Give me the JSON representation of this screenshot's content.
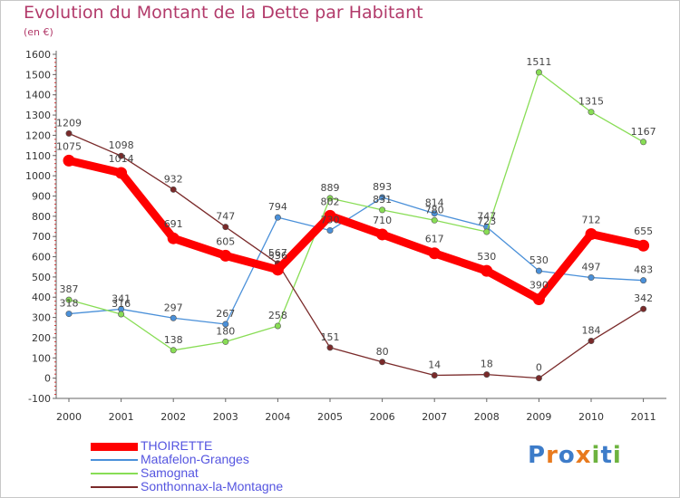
{
  "title": "Evolution du Montant de la Dette par Habitant",
  "subtitle": "(en €)",
  "logo": {
    "text": "Proxiti",
    "colors": [
      "#3d7cc9",
      "#e87a1e",
      "#3d7cc9",
      "#e87a1e",
      "#6db33f",
      "#3d7cc9",
      "#6db33f"
    ]
  },
  "chart_data": {
    "type": "line",
    "x": [
      "2000",
      "2001",
      "2002",
      "2003",
      "2004",
      "2005",
      "2006",
      "2007",
      "2008",
      "2009",
      "2010",
      "2011"
    ],
    "ylim": [
      -100,
      1600
    ],
    "yticks": [
      "-100",
      "0",
      "100",
      "200",
      "300",
      "400",
      "500",
      "600",
      "700",
      "800",
      "900",
      "1000",
      "1100",
      "1200",
      "1300",
      "1400",
      "1500",
      "1600"
    ],
    "grid": false,
    "legend_position": "bottom-left",
    "series": [
      {
        "name": "THOIRETTE",
        "color": "#ff0000",
        "emphasis": true,
        "values": [
          1075,
          1014,
          691,
          605,
          536,
          802,
          710,
          617,
          530,
          390,
          712,
          655
        ],
        "labels": [
          "1075",
          "1014",
          "691",
          "605",
          "536",
          "802",
          "710",
          "617",
          "530",
          "390",
          "712",
          "655"
        ]
      },
      {
        "name": "Matafelon-Granges",
        "color": "#4a90d9",
        "values": [
          318,
          341,
          297,
          267,
          794,
          730,
          893,
          814,
          747,
          530,
          497,
          483
        ],
        "labels": [
          "318",
          "341",
          "297",
          "267",
          "794",
          "730",
          "893",
          "814",
          "747",
          "530",
          "497",
          "483"
        ]
      },
      {
        "name": "Samognat",
        "color": "#88dd55",
        "values": [
          387,
          316,
          138,
          180,
          258,
          889,
          831,
          780,
          723,
          1511,
          1315,
          1167
        ],
        "labels": [
          "387",
          "316",
          "138",
          "180",
          "258",
          "889",
          "831",
          "780",
          "723",
          "1511",
          "1315",
          "1167"
        ]
      },
      {
        "name": "Sonthonnax-la-Montagne",
        "color": "#7a2a2a",
        "values": [
          1209,
          1098,
          932,
          747,
          567,
          151,
          80,
          14,
          18,
          0,
          184,
          342
        ],
        "labels": [
          "1209",
          "1098",
          "932",
          "747",
          "567",
          "151",
          "80",
          "14",
          "18",
          "0",
          "184",
          "342"
        ]
      }
    ]
  }
}
